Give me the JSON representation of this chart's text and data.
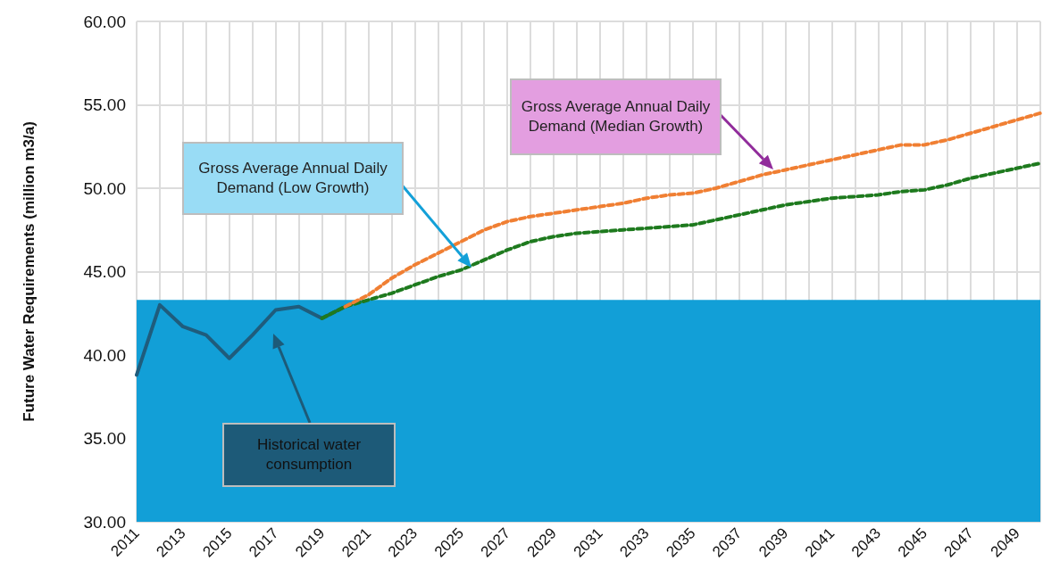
{
  "chart_data": {
    "type": "line",
    "ylabel": "Future Water Requirements (million m3/a)",
    "categories": [
      "2011",
      null,
      "2013",
      null,
      "2015",
      null,
      "2017",
      null,
      "2019",
      null,
      "2021",
      null,
      "2023",
      null,
      "2025",
      null,
      "2027",
      null,
      "2029",
      null,
      "2031",
      null,
      "2033",
      null,
      "2035",
      null,
      "2037",
      null,
      "2039",
      null,
      "2041",
      null,
      "2043",
      null,
      "2045",
      null,
      "2047",
      null,
      "2049",
      null
    ],
    "series": [
      {
        "color": "#1f5c7c",
        "line_style": "solid",
        "values": [
          38.8,
          43.0,
          41.7,
          41.2,
          39.8,
          41.2,
          42.7,
          42.9,
          42.2,
          42.9,
          null,
          null,
          null,
          null,
          null,
          null,
          null,
          null,
          null,
          null,
          null,
          null,
          null,
          null,
          null,
          null,
          null,
          null,
          null,
          null,
          null,
          null,
          null,
          null,
          null,
          null,
          null,
          null,
          null,
          null
        ]
      },
      {
        "color": "#1e7a1e",
        "line_style": "dashed",
        "values": [
          null,
          null,
          null,
          null,
          null,
          null,
          null,
          null,
          42.2,
          42.9,
          43.3,
          43.7,
          44.2,
          44.7,
          45.1,
          45.7,
          46.3,
          46.8,
          47.1,
          47.3,
          47.4,
          47.5,
          47.6,
          47.7,
          47.8,
          48.1,
          48.4,
          48.7,
          49.0,
          49.2,
          49.4,
          49.5,
          49.6,
          49.8,
          49.9,
          50.2,
          50.6,
          50.9,
          51.2,
          51.5
        ]
      },
      {
        "color": "#f07f33",
        "line_style": "dashed",
        "values": [
          null,
          null,
          null,
          null,
          null,
          null,
          null,
          null,
          null,
          42.9,
          43.6,
          44.6,
          45.4,
          46.1,
          46.8,
          47.5,
          48.0,
          48.3,
          48.5,
          48.7,
          48.9,
          49.1,
          49.4,
          49.6,
          49.7,
          50.0,
          50.4,
          50.8,
          51.1,
          51.4,
          51.7,
          52.0,
          52.3,
          52.6,
          52.6,
          52.9,
          53.3,
          53.7,
          54.1,
          54.5
        ]
      }
    ],
    "ylim": [
      30,
      60
    ],
    "yticks": [
      {
        "value": 30,
        "label": "30.00"
      },
      {
        "value": 35,
        "label": "35.00"
      },
      {
        "value": 40,
        "label": "40.00"
      },
      {
        "value": 45,
        "label": "45.00"
      },
      {
        "value": 50,
        "label": "50.00"
      },
      {
        "value": 55,
        "label": "55.00"
      },
      {
        "value": 60,
        "label": "60.00"
      }
    ],
    "bands": [
      {
        "axis": "y",
        "from": 30,
        "to": 43.3,
        "color": "#129fd7"
      }
    ],
    "annotations": [
      "Gross Average Annual Daily Demand (Low Growth)",
      "Gross Average Annual Daily Demand (Median Growth)",
      "Historical water consumption"
    ],
    "grid": true,
    "marker": "none"
  }
}
